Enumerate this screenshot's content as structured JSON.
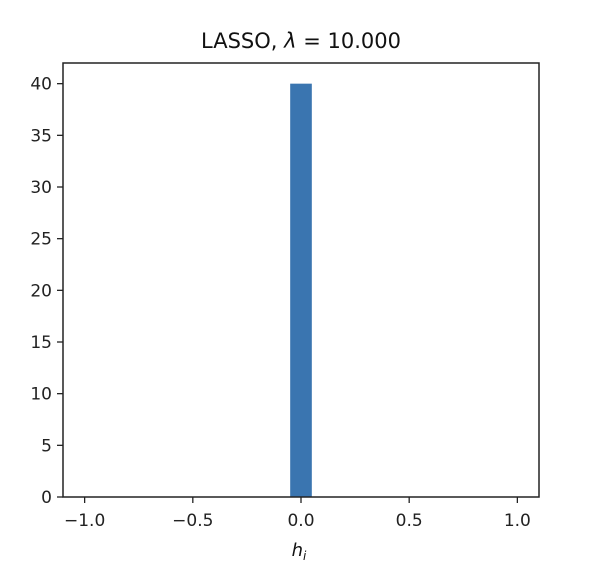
{
  "chart_data": {
    "type": "bar",
    "title_prefix": "LASSO, ",
    "title_symbol": "λ",
    "title_suffix": " = 10.000",
    "xlabel_main": "h",
    "xlabel_sub": "i",
    "ylabel": "",
    "xlim": [
      -1.1,
      1.1
    ],
    "ylim": [
      0,
      42
    ],
    "xticks": [
      -1.0,
      -0.5,
      0.0,
      0.5,
      1.0
    ],
    "xtick_labels": [
      "−1.0",
      "−0.5",
      "0.0",
      "0.5",
      "1.0"
    ],
    "yticks": [
      0,
      5,
      10,
      15,
      20,
      25,
      30,
      35,
      40
    ],
    "ytick_labels": [
      "0",
      "5",
      "10",
      "15",
      "20",
      "25",
      "30",
      "35",
      "40"
    ],
    "bins": [
      {
        "x0": -0.05,
        "x1": 0.05,
        "count": 40
      }
    ],
    "bar_color": "#3a75b0",
    "grid": false
  }
}
